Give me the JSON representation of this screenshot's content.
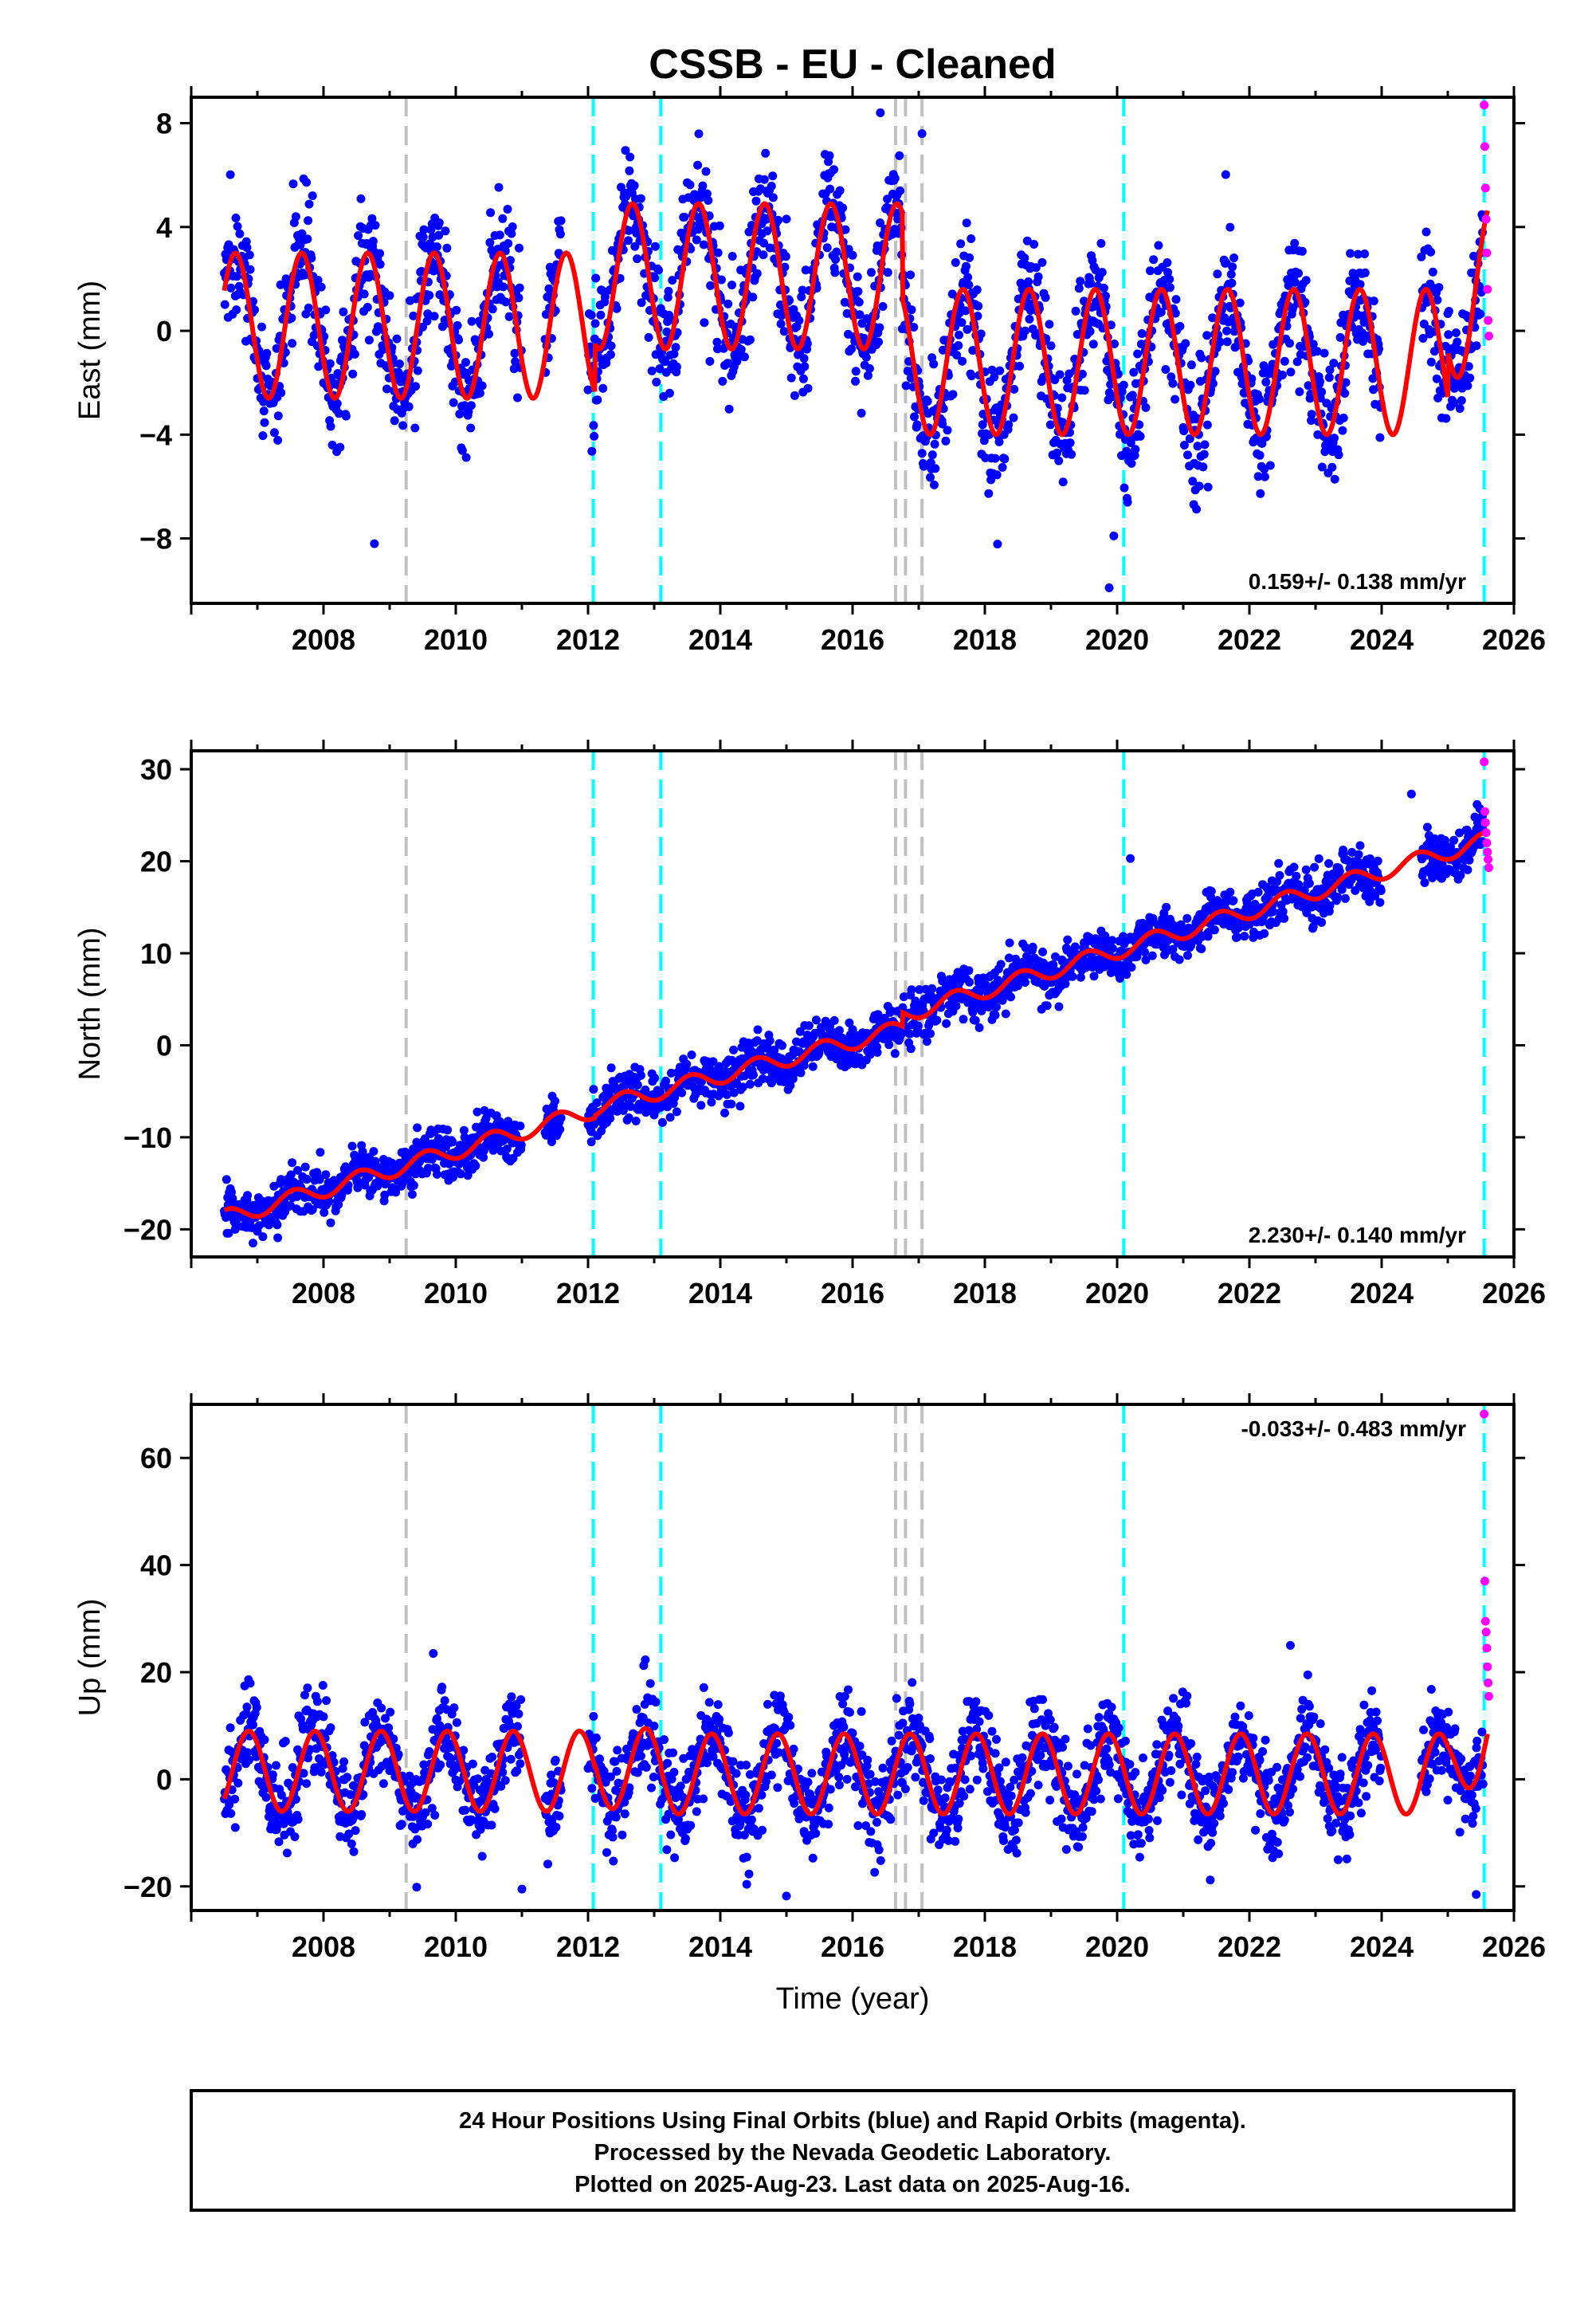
{
  "title": "CSSB  - EU - Cleaned",
  "xlabel": "Time (year)",
  "footer": {
    "line1": "24 Hour Positions Using Final Orbits (blue) and Rapid Orbits (magenta).",
    "line2": "Processed by the Nevada Geodetic Laboratory.",
    "line3": "Plotted on 2025-Aug-23. Last data on 2025-Aug-16."
  },
  "colors": {
    "final_points": "#0000ff",
    "rapid_points": "#ff00ff",
    "model_line": "#ff0000",
    "equipment_change_line": "#00ffff",
    "other_event_line": "#c0c0c0"
  },
  "chart_data": [
    {
      "type": "scatter",
      "component": "East",
      "ylabel": "East (mm)",
      "xlim": [
        2006.0,
        2026.0
      ],
      "ylim": [
        -10.5,
        9.0
      ],
      "x_ticks": [
        2008,
        2010,
        2012,
        2014,
        2016,
        2018,
        2020,
        2022,
        2024,
        2026
      ],
      "x_tick_labels": [
        "2008",
        "2010",
        "2012",
        "2014",
        "2016",
        "2018",
        "2020",
        "2022",
        "2024",
        "2026"
      ],
      "y_ticks": [
        -8,
        -4,
        0,
        4,
        8
      ],
      "y_tick_labels": [
        "−8",
        "−4",
        "0",
        "4",
        "8"
      ],
      "rate_text": "0.159+/- 0.138 mm/yr",
      "rate_position": "bottom-right",
      "model": {
        "start": 2006.5,
        "end": 2025.6,
        "seasonal_amplitude": 2.8,
        "seasonal_phase": 0.42,
        "segments": [
          {
            "from": 2006.5,
            "to": 2012.1,
            "offset": 0.2,
            "slope": 0.0
          },
          {
            "from": 2012.1,
            "to": 2016.75,
            "offset": 2.1,
            "slope": 0.0
          },
          {
            "from": 2016.75,
            "to": 2025.0,
            "offset": -1.2,
            "slope": 0.0
          },
          {
            "from": 2025.0,
            "to": 2025.6,
            "offset": 0.6,
            "slope": 2.5
          }
        ]
      },
      "scatter_noise": 1.2,
      "data_gaps": [
        [
          2011.0,
          2011.35
        ],
        [
          2011.6,
          2012.0
        ],
        [
          2024.0,
          2024.6
        ]
      ],
      "rapid_points": {
        "x": [
          2025.55,
          2025.56,
          2025.57,
          2025.58,
          2025.59,
          2025.6,
          2025.61,
          2025.62
        ],
        "y": [
          8.7,
          7.1,
          5.5,
          4.3,
          3.0,
          1.6,
          0.4,
          -0.2
        ]
      },
      "outliers": {
        "x": [
          2008.77,
          2016.42,
          2017.05,
          2019.88,
          2019.95
        ],
        "y": [
          -8.2,
          8.4,
          7.6,
          -9.9,
          -7.9
        ]
      }
    },
    {
      "type": "scatter",
      "component": "North",
      "ylabel": "North (mm)",
      "xlim": [
        2006.0,
        2026.0
      ],
      "ylim": [
        -23.0,
        32.0
      ],
      "x_ticks": [
        2008,
        2010,
        2012,
        2014,
        2016,
        2018,
        2020,
        2022,
        2024,
        2026
      ],
      "x_tick_labels": [
        "2008",
        "2010",
        "2012",
        "2014",
        "2016",
        "2018",
        "2020",
        "2022",
        "2024",
        "2026"
      ],
      "y_ticks": [
        -20,
        -10,
        0,
        10,
        20,
        30
      ],
      "y_tick_labels": [
        "−20",
        "−10",
        "0",
        "10",
        "20",
        "30"
      ],
      "rate_text": "2.230+/- 0.140 mm/yr",
      "rate_position": "bottom-right",
      "model": {
        "start": 2006.5,
        "end": 2025.6,
        "seasonal_amplitude": 0.9,
        "seasonal_phase": 0.3,
        "segments": [
          {
            "from": 2006.5,
            "to": 2012.1,
            "offset": -18.8,
            "slope": 2.1
          },
          {
            "from": 2012.1,
            "to": 2016.75,
            "offset": -6.8,
            "slope": 1.85
          },
          {
            "from": 2016.75,
            "to": 2025.6,
            "offset": 3.3,
            "slope": 2.15
          }
        ]
      },
      "scatter_noise": 1.3,
      "data_gaps": [
        [
          2011.0,
          2011.35
        ],
        [
          2011.6,
          2012.0
        ],
        [
          2024.0,
          2024.6
        ]
      ],
      "rapid_points": {
        "x": [
          2025.55,
          2025.56,
          2025.57,
          2025.58,
          2025.59,
          2025.6,
          2025.61,
          2025.62
        ],
        "y": [
          30.8,
          25.4,
          24.2,
          23.1,
          22.0,
          21.0,
          20.2,
          19.3
        ]
      },
      "outliers": {
        "x": [
          2012.05,
          2019.12,
          2020.2,
          2024.45
        ],
        "y": [
          -10.5,
          4.2,
          20.3,
          27.3
        ]
      }
    },
    {
      "type": "scatter",
      "component": "Up",
      "ylabel": "Up (mm)",
      "xlim": [
        2006.0,
        2026.0
      ],
      "ylim": [
        -24.5,
        70.0
      ],
      "x_ticks": [
        2008,
        2010,
        2012,
        2014,
        2016,
        2018,
        2020,
        2022,
        2024,
        2026
      ],
      "x_tick_labels": [
        "2008",
        "2010",
        "2012",
        "2014",
        "2016",
        "2018",
        "2020",
        "2022",
        "2024",
        "2026"
      ],
      "y_ticks": [
        -20,
        0,
        20,
        40,
        60
      ],
      "y_tick_labels": [
        "−20",
        "0",
        "20",
        "40",
        "60"
      ],
      "rate_text": "-0.033+/- 0.483 mm/yr",
      "rate_position": "top-right",
      "model": {
        "start": 2006.5,
        "end": 2025.6,
        "seasonal_amplitude": 7.5,
        "seasonal_phase": 0.62,
        "segments": [
          {
            "from": 2006.5,
            "to": 2012.1,
            "offset": 1.5,
            "slope": 0.0
          },
          {
            "from": 2012.1,
            "to": 2013.1,
            "offset": 2.0,
            "slope": 0.0
          },
          {
            "from": 2013.1,
            "to": 2025.0,
            "offset": 1.0,
            "slope": 0.0
          },
          {
            "from": 2025.0,
            "to": 2025.6,
            "offset": 1.0,
            "slope": 14.0
          }
        ]
      },
      "scatter_noise": 4.2,
      "data_gaps": [
        [
          2011.0,
          2011.35
        ],
        [
          2011.6,
          2012.0
        ],
        [
          2024.0,
          2024.6
        ]
      ],
      "rapid_points": {
        "x": [
          2025.55,
          2025.56,
          2025.57,
          2025.58,
          2025.59,
          2025.6,
          2025.61,
          2025.62
        ],
        "y": [
          68.2,
          37.0,
          29.5,
          27.5,
          24.5,
          21.0,
          18.0,
          15.5
        ]
      },
      "outliers": {
        "x": [
          2009.66,
          2011.0,
          2014.4,
          2022.62,
          2025.43,
          2015.0
        ],
        "y": [
          23.5,
          -20.5,
          -19.6,
          25.0,
          -21.5,
          -21.8
        ]
      }
    }
  ],
  "event_lines": [
    {
      "x": 2009.25,
      "kind": "other"
    },
    {
      "x": 2012.08,
      "kind": "equipment"
    },
    {
      "x": 2013.1,
      "kind": "equipment"
    },
    {
      "x": 2016.65,
      "kind": "other"
    },
    {
      "x": 2016.8,
      "kind": "other"
    },
    {
      "x": 2017.05,
      "kind": "other"
    },
    {
      "x": 2020.1,
      "kind": "equipment"
    },
    {
      "x": 2025.55,
      "kind": "equipment"
    }
  ]
}
